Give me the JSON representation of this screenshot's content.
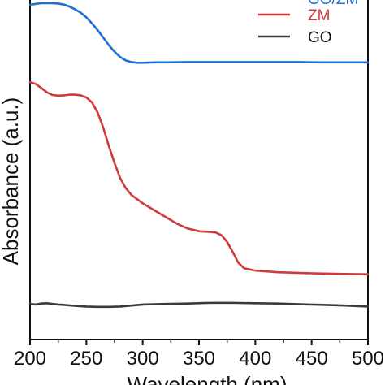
{
  "chart_data": {
    "type": "line",
    "xlabel": "Wavelength (nm)",
    "ylabel": "Absorbance (a.u.)",
    "xlim": [
      200,
      500
    ],
    "x_ticks": [
      200,
      250,
      300,
      350,
      400,
      450,
      500
    ],
    "x_tick_labels": [
      "200",
      "250",
      "300",
      "350",
      "400",
      "450",
      "500"
    ],
    "ylim": [
      0,
      1.0
    ],
    "y_ticks_labeled": false,
    "grid": false,
    "legend": {
      "placement": "top-right",
      "entries": [
        "GO/ZM",
        "ZM",
        "GO"
      ]
    },
    "series": [
      {
        "name": "GO/ZM",
        "color": "#1f6fcf",
        "x": [
          200,
          205,
          210,
          215,
          220,
          225,
          230,
          235,
          240,
          245,
          250,
          255,
          260,
          265,
          270,
          275,
          280,
          285,
          290,
          295,
          300,
          310,
          320,
          340,
          360,
          380,
          400,
          420,
          440,
          460,
          480,
          500
        ],
        "y": [
          0.995,
          0.998,
          1.0,
          1.0,
          1.0,
          0.999,
          0.996,
          0.99,
          0.982,
          0.972,
          0.958,
          0.94,
          0.92,
          0.898,
          0.875,
          0.856,
          0.84,
          0.83,
          0.825,
          0.823,
          0.823,
          0.824,
          0.824,
          0.825,
          0.825,
          0.825,
          0.825,
          0.825,
          0.825,
          0.824,
          0.824,
          0.824
        ]
      },
      {
        "name": "ZM",
        "color": "#d03a3a",
        "x": [
          200,
          205,
          210,
          215,
          220,
          225,
          230,
          235,
          240,
          245,
          250,
          255,
          260,
          265,
          270,
          275,
          280,
          285,
          290,
          300,
          310,
          320,
          330,
          340,
          350,
          360,
          365,
          370,
          375,
          380,
          385,
          390,
          400,
          420,
          440,
          460,
          480,
          500
        ],
        "y": [
          0.765,
          0.76,
          0.748,
          0.735,
          0.727,
          0.725,
          0.726,
          0.728,
          0.728,
          0.726,
          0.72,
          0.705,
          0.675,
          0.63,
          0.575,
          0.525,
          0.48,
          0.45,
          0.43,
          0.405,
          0.385,
          0.365,
          0.345,
          0.33,
          0.322,
          0.32,
          0.318,
          0.31,
          0.29,
          0.26,
          0.228,
          0.212,
          0.205,
          0.2,
          0.198,
          0.196,
          0.195,
          0.194
        ]
      },
      {
        "name": "GO",
        "color": "#3a3a3a",
        "x": [
          200,
          205,
          210,
          215,
          220,
          225,
          230,
          240,
          250,
          260,
          270,
          280,
          290,
          300,
          320,
          340,
          360,
          380,
          400,
          420,
          440,
          460,
          480,
          500
        ],
        "y": [
          0.106,
          0.104,
          0.107,
          0.108,
          0.106,
          0.104,
          0.103,
          0.1,
          0.098,
          0.097,
          0.097,
          0.098,
          0.101,
          0.104,
          0.106,
          0.107,
          0.109,
          0.109,
          0.108,
          0.107,
          0.105,
          0.103,
          0.101,
          0.098
        ]
      }
    ]
  }
}
